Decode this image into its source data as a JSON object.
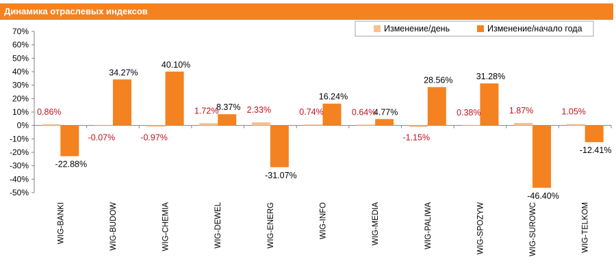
{
  "chart_data": {
    "type": "bar",
    "title": "Динамика отраслевых индексов",
    "categories": [
      "WIG-BANKI",
      "WIG-BUDOW",
      "WIG-CHEMIA",
      "WIG-DEWEL",
      "WIG-ENERG",
      "WIG-INFO",
      "WIG-MEDIA",
      "WIG-PALIWA",
      "WIG-SPOZYW",
      "WIG-SUROWC",
      "WIG-TELKOM"
    ],
    "series": [
      {
        "name": "Изменение/день",
        "color": "#f9c08f",
        "values": [
          0.86,
          -0.07,
          -0.97,
          1.72,
          2.33,
          0.74,
          0.64,
          -1.15,
          0.38,
          1.87,
          1.05
        ],
        "labels": [
          "0.86%",
          "-0.07%",
          "-0.97%",
          "1.72%",
          "2.33%",
          "0.74%",
          "0.64%",
          "-1.15%",
          "0.38%",
          "1.87%",
          "1.05%"
        ]
      },
      {
        "name": "Изменение/начало года",
        "color": "#f58220",
        "values": [
          -22.88,
          34.27,
          40.1,
          8.37,
          -31.07,
          16.24,
          4.77,
          28.56,
          31.28,
          -46.4,
          -12.41
        ],
        "labels": [
          "-22.88%",
          "34.27%",
          "40.10%",
          "8.37%",
          "-31.07%",
          "16.24%",
          "4.77%",
          "28.56%",
          "31.28%",
          "-46.40%",
          "-12.41%"
        ]
      }
    ],
    "y_ticks": [
      "70%",
      "60%",
      "50%",
      "40%",
      "30%",
      "20%",
      "10%",
      "0%",
      "-10%",
      "-20%",
      "-30%",
      "-40%",
      "-50%"
    ],
    "ylim": [
      -50,
      70
    ],
    "grid": false,
    "legend_position": "top-right"
  }
}
